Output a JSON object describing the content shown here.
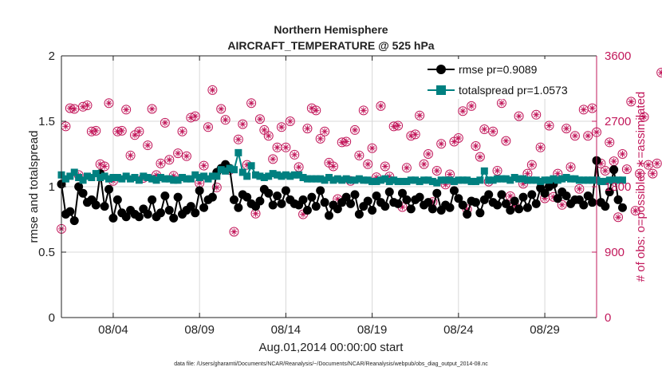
{
  "chart_data": {
    "type": "line",
    "title": "Northern Hemisphere",
    "subtitle": "AIRCRAFT_TEMPERATURE @ 525 hPa",
    "xlabel": "Aug.01,2014 00:00:00 start",
    "ylabel": "rmse and totalspread",
    "ylabel_right": "# of obs: o=possible; ∗=assimilated",
    "footnote": "data file: /Users/gharamti/Documents/NCAR/Reanalysis/~/Documents/NCAR/Reanalysis/webpub/obs_diag_output_2014-08.nc",
    "xlim": [
      1,
      32
    ],
    "ylim": [
      0,
      2
    ],
    "ylim_right": [
      0,
      3600
    ],
    "x_ticks": [
      {
        "x": 4,
        "label": "08/04"
      },
      {
        "x": 9,
        "label": "08/09"
      },
      {
        "x": 14,
        "label": "08/14"
      },
      {
        "x": 19,
        "label": "08/19"
      },
      {
        "x": 24,
        "label": "08/24"
      },
      {
        "x": 29,
        "label": "08/29"
      }
    ],
    "y_ticks": [
      "0",
      "0.5",
      "1",
      "1.5",
      "2"
    ],
    "y_ticks_right": [
      "0",
      "900",
      "1800",
      "2700",
      "3600"
    ],
    "legend_position": "top-right",
    "series": [
      {
        "name": "rmse pr=0.9089",
        "color": "#000000",
        "marker": "circle",
        "values": [
          1.02,
          0.79,
          0.81,
          0.74,
          1.0,
          0.95,
          0.88,
          0.9,
          0.86,
          1.1,
          0.85,
          0.98,
          0.76,
          0.9,
          0.8,
          0.77,
          0.82,
          0.79,
          0.77,
          0.83,
          0.79,
          0.9,
          0.77,
          0.8,
          0.93,
          0.82,
          0.76,
          0.92,
          0.79,
          0.82,
          0.85,
          0.8,
          0.97,
          0.84,
          0.9,
          0.92,
          1.11,
          1.14,
          1.17,
          1.14,
          0.9,
          0.84,
          0.94,
          0.92,
          0.87,
          0.85,
          0.89,
          0.98,
          0.95,
          0.86,
          0.93,
          0.87,
          0.97,
          0.9,
          0.87,
          0.86,
          0.9,
          0.82,
          0.92,
          0.85,
          0.97,
          0.88,
          0.78,
          0.86,
          0.83,
          0.88,
          0.92,
          0.87,
          0.94,
          0.79,
          0.85,
          0.89,
          0.82,
          0.93,
          0.88,
          0.85,
          0.96,
          0.88,
          0.87,
          0.95,
          0.9,
          0.83,
          0.9,
          0.92,
          0.86,
          0.88,
          0.83,
          0.95,
          0.82,
          0.86,
          0.84,
          0.97,
          0.91,
          0.86,
          0.79,
          0.89,
          0.88,
          0.8,
          0.9,
          0.94,
          0.88,
          0.86,
          0.94,
          0.87,
          0.82,
          0.89,
          0.83,
          0.92,
          0.84,
          0.94,
          0.87,
          0.99,
          0.95,
          1.0,
          1.02,
          0.91,
          0.96,
          0.93,
          0.87,
          0.9,
          0.9,
          0.86,
          0.93,
          0.88,
          1.2,
          0.88,
          0.85,
          0.96,
          1.13,
          0.9,
          0.84
        ]
      },
      {
        "name": "totalspread pr=1.0573",
        "color": "#008080",
        "marker": "square",
        "values": [
          1.09,
          1.06,
          1.08,
          1.11,
          1.07,
          1.05,
          1.08,
          1.07,
          1.1,
          1.07,
          1.08,
          1.06,
          1.07,
          1.07,
          1.06,
          1.08,
          1.06,
          1.07,
          1.05,
          1.08,
          1.07,
          1.06,
          1.05,
          1.07,
          1.06,
          1.06,
          1.05,
          1.05,
          1.07,
          1.06,
          1.06,
          1.09,
          1.07,
          1.08,
          1.06,
          1.08,
          1.08,
          1.13,
          1.12,
          1.14,
          1.13,
          1.26,
          1.11,
          1.08,
          1.16,
          1.09,
          1.08,
          1.07,
          1.08,
          1.1,
          1.09,
          1.08,
          1.09,
          1.08,
          1.09,
          1.09,
          1.07,
          1.06,
          1.06,
          1.06,
          1.06,
          1.05,
          1.07,
          1.05,
          1.06,
          1.05,
          1.06,
          1.05,
          1.05,
          1.06,
          1.05,
          1.05,
          1.04,
          1.04,
          1.05,
          1.06,
          1.04,
          1.05,
          1.04,
          1.04,
          1.04,
          1.05,
          1.05,
          1.04,
          1.05,
          1.05,
          1.04,
          1.03,
          1.05,
          1.05,
          1.05,
          1.04,
          1.05,
          1.05,
          1.05,
          1.04,
          1.04,
          1.05,
          1.12,
          1.05,
          1.05,
          1.06,
          1.06,
          1.06,
          1.05,
          1.07,
          1.06,
          1.06,
          1.05,
          1.05,
          1.05,
          1.04,
          1.05,
          1.05,
          1.06,
          1.05,
          1.06,
          1.07,
          1.06,
          1.06,
          1.05,
          1.05,
          1.05,
          1.05,
          1.05,
          1.04,
          1.04,
          1.05,
          1.05,
          1.05,
          1.05
        ]
      },
      {
        "name": "# obs possible",
        "axis": "right",
        "color": "#c2185b",
        "marker": "circle-star",
        "values": [
          1220,
          2630,
          2880,
          2870,
          1960,
          2900,
          2920,
          2560,
          2570,
          2110,
          2080,
          2950,
          1880,
          2560,
          2570,
          2860,
          2230,
          2510,
          2560,
          1920,
          2370,
          2870,
          1960,
          2120,
          2680,
          2170,
          1950,
          2260,
          2560,
          2220,
          2750,
          2770,
          1850,
          2090,
          2620,
          3130,
          1790,
          2870,
          2720,
          2030,
          1180,
          2450,
          2660,
          2100,
          2950,
          1430,
          2730,
          2580,
          2500,
          2180,
          2340,
          2620,
          2340,
          2700,
          2240,
          2070,
          1420,
          2600,
          2880,
          2850,
          2460,
          2560,
          2130,
          2080,
          1630,
          2410,
          2420,
          1880,
          2580,
          2230,
          2850,
          2110,
          2330,
          1930,
          2910,
          2080,
          1940,
          2630,
          2640,
          1520,
          2060,
          2500,
          2520,
          2780,
          2110,
          2250,
          1590,
          2020,
          2390,
          1830,
          1970,
          2420,
          2470,
          2840,
          1490,
          2910,
          2360,
          2210,
          2590,
          1870,
          2560,
          2020,
          2950,
          2430,
          1670,
          1540,
          2770,
          1840,
          1980,
          2100,
          2790,
          2340,
          1640,
          2640,
          1660,
          1980,
          1550,
          2600,
          2070,
          2500,
          1770,
          2860,
          2500,
          2880,
          2550,
          2120,
          2020,
          2410,
          2150,
          1380,
          2250,
          2040,
          2970,
          1470,
          1980,
          2760,
          2100,
          1980,
          2120,
          3370
        ]
      },
      {
        "name": "# obs assimilated",
        "axis": "right",
        "color": "#c2185b",
        "marker": "star",
        "values": [
          1220,
          2630,
          2880,
          2870,
          1960,
          2900,
          2920,
          2560,
          2570,
          2110,
          2080,
          2950,
          1880,
          2560,
          2570,
          2860,
          2230,
          2510,
          2560,
          1920,
          2370,
          2870,
          1960,
          2120,
          2680,
          2170,
          1950,
          2260,
          2560,
          2220,
          2750,
          2770,
          1850,
          2090,
          2620,
          3130,
          1790,
          2870,
          2720,
          2030,
          1180,
          2450,
          2660,
          2100,
          2950,
          1430,
          2730,
          2580,
          2500,
          2180,
          2340,
          2620,
          2340,
          2700,
          2240,
          2070,
          1420,
          2600,
          2880,
          2850,
          2460,
          2560,
          2130,
          2080,
          1630,
          2410,
          2420,
          1880,
          2580,
          2230,
          2850,
          2110,
          2330,
          1930,
          2910,
          2080,
          1940,
          2630,
          2640,
          1520,
          2060,
          2500,
          2520,
          2780,
          2110,
          2250,
          1590,
          2020,
          2390,
          1830,
          1970,
          2420,
          2470,
          2840,
          1490,
          2910,
          2360,
          2210,
          2590,
          1870,
          2560,
          2020,
          2950,
          2430,
          1670,
          1540,
          2770,
          1840,
          1980,
          2100,
          2790,
          2340,
          1640,
          2640,
          1660,
          1980,
          1550,
          2600,
          2070,
          2500,
          1770,
          2860,
          2500,
          2880,
          2550,
          2120,
          2020,
          2410,
          2150,
          1380,
          2250,
          2040,
          2970,
          1470,
          1980,
          2760,
          2100,
          1980,
          2120,
          3370
        ]
      }
    ]
  }
}
